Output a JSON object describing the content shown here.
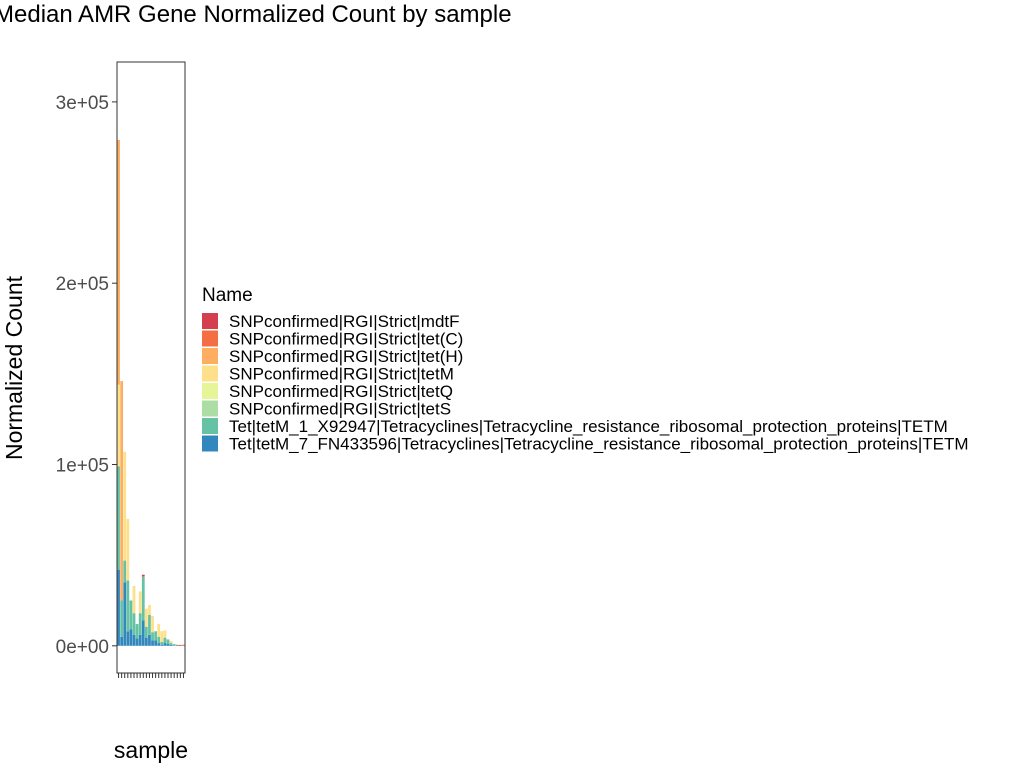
{
  "chart_data": {
    "type": "bar",
    "stacked": true,
    "title": "Median AMR Gene Normalized Count by sample",
    "xlabel": "sample",
    "ylabel": "Normalized Count",
    "ylim": [
      -15000,
      322000
    ],
    "yticks": [
      0,
      100000,
      200000,
      300000
    ],
    "ytick_labels": [
      "0e+00",
      "1e+05",
      "2e+05",
      "3e+05"
    ],
    "grid": false,
    "legend_placement": "right",
    "legend_title": "Name",
    "x_tick_labels_rotated": true,
    "categories": [
      "",
      "",
      "",
      "",
      "",
      "",
      "",
      "",
      "",
      "",
      "",
      "",
      "",
      "",
      "",
      "",
      "",
      "",
      "",
      "",
      "",
      ""
    ],
    "series": [
      {
        "name": "SNPconfirmed|RGI|Strict|mdtF",
        "color": "#d53e4f",
        "values": [
          0,
          0,
          0,
          0,
          0,
          0,
          0,
          0,
          700,
          0,
          0,
          0,
          0,
          0,
          0,
          0,
          0,
          0,
          0,
          0,
          500,
          0
        ]
      },
      {
        "name": "SNPconfirmed|RGI|Strict|tet(C)",
        "color": "#f46d43",
        "values": [
          0,
          0,
          0,
          0,
          0,
          0,
          0,
          0,
          500,
          0,
          0,
          0,
          0,
          0,
          0,
          0,
          0,
          0,
          0,
          0,
          0,
          600
        ]
      },
      {
        "name": "SNPconfirmed|RGI|Strict|tet(H)",
        "color": "#fdae61",
        "values": [
          135000,
          121000,
          0,
          0,
          0,
          0,
          0,
          0,
          0,
          0,
          0,
          0,
          0,
          0,
          0,
          0,
          0,
          0,
          0,
          0,
          0,
          0
        ]
      },
      {
        "name": "SNPconfirmed|RGI|Strict|tetM",
        "color": "#fee08b",
        "values": [
          45000,
          0,
          60000,
          34000,
          0,
          15000,
          0,
          12000,
          0,
          10000,
          5500,
          9000,
          0,
          7000,
          6000,
          4000,
          0,
          1200,
          0,
          400,
          0,
          0
        ]
      },
      {
        "name": "SNPconfirmed|RGI|Strict|tetQ",
        "color": "#e6f598",
        "values": [
          0,
          0,
          0,
          0,
          0,
          0,
          0,
          0,
          0,
          0,
          0,
          0,
          0,
          0,
          0,
          0,
          0,
          0,
          0,
          0,
          0,
          0
        ]
      },
      {
        "name": "SNPconfirmed|RGI|Strict|tetS",
        "color": "#abdda4",
        "values": [
          0,
          0,
          0,
          0,
          0,
          0,
          0,
          0,
          0,
          0,
          0,
          0,
          0,
          0,
          0,
          0,
          0,
          0,
          0,
          0,
          0,
          0
        ]
      },
      {
        "name": "Tet|tetM_1_X92947|Tetracyclines|Tetracycline_resistance_ribosomal_protection_proteins|TETM",
        "color": "#66c2a5",
        "values": [
          57000,
          20000,
          12000,
          28000,
          16000,
          12000,
          8000,
          12000,
          24000,
          6000,
          11000,
          4500,
          5000,
          3500,
          1500,
          3000,
          2500,
          1000,
          600,
          300,
          0,
          0
        ]
      },
      {
        "name": "Tet|tetM_7_FN433596|Tetracyclines|Tetracycline_resistance_ribosomal_protection_proteins|TETM",
        "color": "#3288bd",
        "values": [
          42000,
          5000,
          35000,
          8000,
          9000,
          6000,
          4000,
          6000,
          14000,
          4500,
          6000,
          3000,
          3000,
          1500,
          600,
          1500,
          1000,
          500,
          300,
          200,
          0,
          0
        ]
      }
    ]
  }
}
